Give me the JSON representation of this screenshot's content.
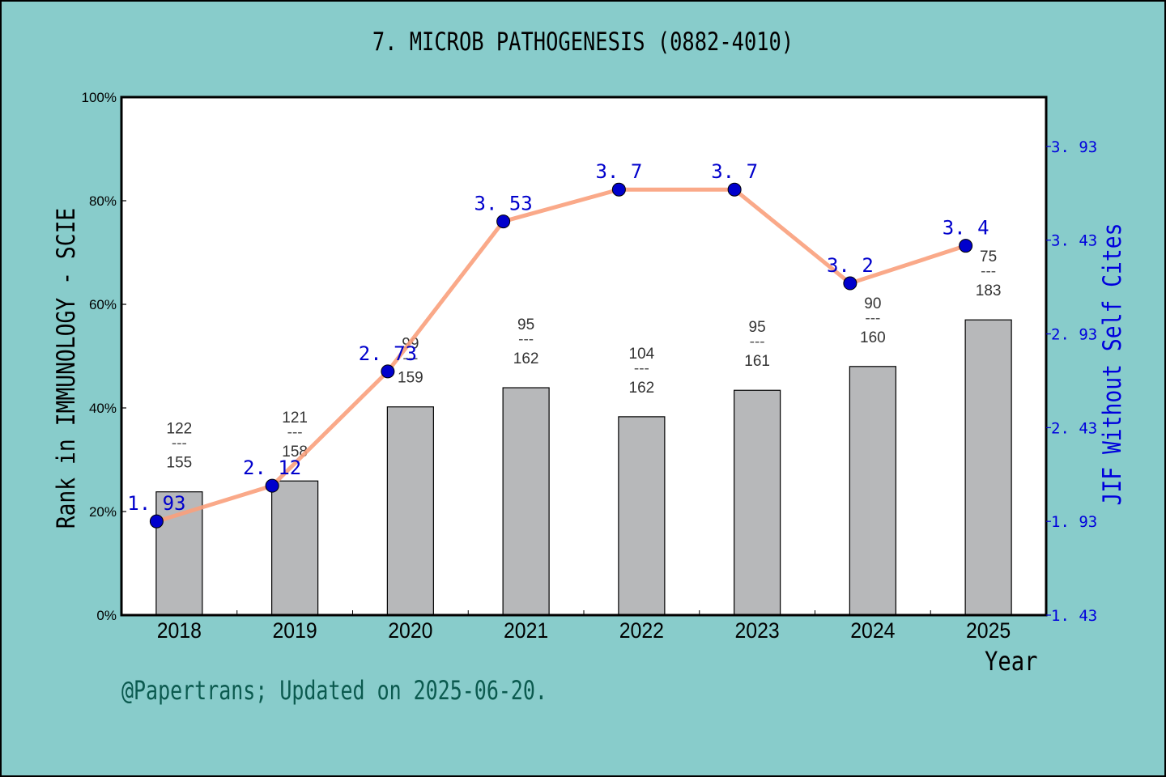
{
  "title": "7. MICROB PATHOGENESIS (0882-4010)",
  "y_left_label": "Rank in IMMUNOLOGY - SCIE",
  "y_right_label": "JIF Without Self Cites",
  "x_label": "Year",
  "footer": "@Papertrans; Updated on 2025-06-20.",
  "colors": {
    "background": "#88cccb",
    "plot_bg": "#ffffff",
    "bar_fill": "#b7b8ba",
    "line": "#f9a07c",
    "marker": "#0000cc",
    "jif_label": "#0000cc",
    "footer": "#0b5a4f"
  },
  "chart_data": {
    "type": "bar+line",
    "title": "7. MICROB PATHOGENESIS (0882-4010)",
    "xlabel": "Year",
    "ylabel": "Rank in IMMUNOLOGY - SCIE",
    "ylabel_right": "JIF Without Self Cites",
    "categories": [
      "2018",
      "2019",
      "2020",
      "2021",
      "2022",
      "2023",
      "2024",
      "2025"
    ],
    "ylim": [
      0,
      100
    ],
    "yticks": [
      "0%",
      "20%",
      "40%",
      "60%",
      "80%",
      "100%"
    ],
    "ylim_right": [
      1.43,
      4.193
    ],
    "yticks_right": [
      "1.43",
      "1.93",
      "2.43",
      "2.93",
      "3.43",
      "3.93"
    ],
    "grid": false,
    "series": [
      {
        "name": "Rank percentile (bar)",
        "type": "bar",
        "values": [
          23.8,
          25.9,
          40.2,
          43.9,
          38.3,
          43.4,
          48.0,
          57.0
        ],
        "rank_labels": [
          {
            "rank": "122",
            "total": "155"
          },
          {
            "rank": "121",
            "total": "158"
          },
          {
            "rank": "99",
            "total": "159"
          },
          {
            "rank": "95",
            "total": "162"
          },
          {
            "rank": "104",
            "total": "162"
          },
          {
            "rank": "95",
            "total": "161"
          },
          {
            "rank": "90",
            "total": "160"
          },
          {
            "rank": "75",
            "total": "183"
          }
        ]
      },
      {
        "name": "JIF Without Self Cites",
        "type": "line",
        "axis": "right",
        "values": [
          1.93,
          2.12,
          2.73,
          3.53,
          3.7,
          3.7,
          3.2,
          3.4
        ],
        "labels": [
          "1.93",
          "2.12",
          "2.73",
          "3.53",
          "3.7",
          "3.7",
          "3.2",
          "3.4"
        ]
      }
    ]
  }
}
